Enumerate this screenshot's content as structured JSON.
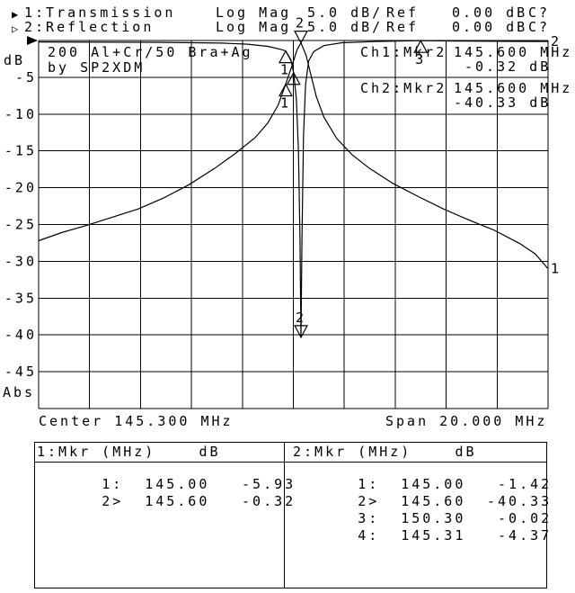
{
  "window": {
    "bg": "#ffffff",
    "fg": "#000000"
  },
  "header": {
    "line1": {
      "pointer": "▶",
      "trace": "1:Transmission",
      "format": "Log Mag",
      "scale": "5.0 dB/",
      "ref_label": "Ref",
      "ref_value": "0.00 dB",
      "cal": "C?"
    },
    "line2": {
      "pointer": "▷",
      "trace": "2:Reflection",
      "format": "Log Mag",
      "scale": "5.0 dB/",
      "ref_label": "Ref",
      "ref_value": "0.00 dB",
      "cal": "C?"
    }
  },
  "graph": {
    "unit_label": "dB",
    "abs_label": "Abs",
    "y_ticks": [
      "-5",
      "-10",
      "-15",
      "-20",
      "-25",
      "-30",
      "-35",
      "-40",
      "-45"
    ],
    "annotation_line1": "200 Al+Cr/50 Bra+Ag",
    "annotation_line2": "by SP2XDM",
    "readouts": [
      {
        "ch": "Ch1:Mkr2",
        "freq": "145.600 MHz",
        "level": "-0.32 dB"
      },
      {
        "ch": "Ch2:Mkr2",
        "freq": "145.600 MHz",
        "level": "-40.33 dB"
      }
    ],
    "center_label": "Center 145.300 MHz",
    "span_label": "Span 20.000 MHz"
  },
  "chart_data": {
    "type": "line",
    "title": "200 Al+Cr/50 Bra+Ag by SP2XDM",
    "x_axis": {
      "label": "MHz",
      "center": 145.3,
      "span": 20.0,
      "min": 135.3,
      "max": 155.3,
      "mhz_per_div": 2.0
    },
    "y_axis": {
      "label": "dB",
      "mode": "Abs",
      "ref": 0.0,
      "db_per_div": 5.0,
      "min": -50,
      "max": 0
    },
    "grid": true,
    "series": [
      {
        "name": "1: Transmission",
        "end_label": "1",
        "points": [
          [
            135.3,
            -27.2
          ],
          [
            136.2,
            -26.1
          ],
          [
            137.2,
            -25.1
          ],
          [
            138.2,
            -24.0
          ],
          [
            139.2,
            -22.9
          ],
          [
            140.2,
            -21.4
          ],
          [
            141.2,
            -19.6
          ],
          [
            142.2,
            -17.4
          ],
          [
            143.0,
            -15.4
          ],
          [
            143.8,
            -13.2
          ],
          [
            144.3,
            -11.2
          ],
          [
            144.7,
            -8.8
          ],
          [
            145.0,
            -5.93
          ],
          [
            145.25,
            -3.4
          ],
          [
            145.45,
            -1.2
          ],
          [
            145.6,
            -0.32
          ],
          [
            145.8,
            -2.0
          ],
          [
            146.0,
            -4.8
          ],
          [
            146.2,
            -7.6
          ],
          [
            146.5,
            -10.4
          ],
          [
            147.0,
            -13.3
          ],
          [
            147.6,
            -15.5
          ],
          [
            148.3,
            -17.4
          ],
          [
            149.2,
            -19.4
          ],
          [
            150.2,
            -21.2
          ],
          [
            151.2,
            -22.9
          ],
          [
            152.2,
            -24.4
          ],
          [
            153.2,
            -25.8
          ],
          [
            154.2,
            -27.6
          ],
          [
            154.8,
            -29.0
          ],
          [
            155.3,
            -31.0
          ]
        ]
      },
      {
        "name": "2: Reflection",
        "end_label": "2",
        "points": [
          [
            135.3,
            -0.2
          ],
          [
            140.0,
            -0.25
          ],
          [
            142.5,
            -0.35
          ],
          [
            143.5,
            -0.5
          ],
          [
            144.3,
            -0.8
          ],
          [
            144.8,
            -1.2
          ],
          [
            145.0,
            -1.42
          ],
          [
            145.2,
            -2.6
          ],
          [
            145.31,
            -4.37
          ],
          [
            145.42,
            -8.0
          ],
          [
            145.5,
            -15.0
          ],
          [
            145.56,
            -27.0
          ],
          [
            145.6,
            -40.33
          ],
          [
            145.64,
            -27.0
          ],
          [
            145.7,
            -13.0
          ],
          [
            145.78,
            -6.0
          ],
          [
            145.9,
            -2.8
          ],
          [
            146.1,
            -1.5
          ],
          [
            146.5,
            -0.7
          ],
          [
            147.2,
            -0.3
          ],
          [
            148.5,
            -0.15
          ],
          [
            150.3,
            -0.02
          ],
          [
            152.0,
            -0.08
          ],
          [
            154.0,
            -0.12
          ],
          [
            155.3,
            -0.15
          ]
        ]
      }
    ],
    "markers": [
      {
        "channel": 1,
        "number": "1",
        "freq_mhz": 145.0,
        "db": -5.93,
        "direction": "up",
        "show_label": true
      },
      {
        "channel": 2,
        "number": "1",
        "freq_mhz": 145.0,
        "db": -1.42,
        "direction": "up",
        "show_label": true
      },
      {
        "channel": 1,
        "number": "2",
        "freq_mhz": 145.6,
        "db": -0.32,
        "direction": "down",
        "show_label": true
      },
      {
        "channel": 2,
        "number": "2",
        "freq_mhz": 145.6,
        "db": -40.33,
        "direction": "down",
        "show_label": true
      },
      {
        "channel": 2,
        "number": "3",
        "freq_mhz": 150.3,
        "db": -0.02,
        "direction": "up",
        "show_label": true
      },
      {
        "channel": 2,
        "number": "4",
        "freq_mhz": 145.31,
        "db": -4.37,
        "direction": "up",
        "show_label": false
      }
    ]
  },
  "table": {
    "left": {
      "header": "1:Mkr (MHz)    dB",
      "rows": [
        [
          "1:",
          "145.00",
          "-5.93"
        ],
        [
          "2>",
          "145.60",
          "-0.32"
        ]
      ]
    },
    "right": {
      "header": "2:Mkr (MHz)    dB",
      "rows": [
        [
          "1:",
          "145.00",
          "-1.42"
        ],
        [
          "2>",
          "145.60",
          "-40.33"
        ],
        [
          "3:",
          "150.30",
          "-0.02"
        ],
        [
          "4:",
          "145.31",
          "-4.37"
        ]
      ]
    }
  }
}
